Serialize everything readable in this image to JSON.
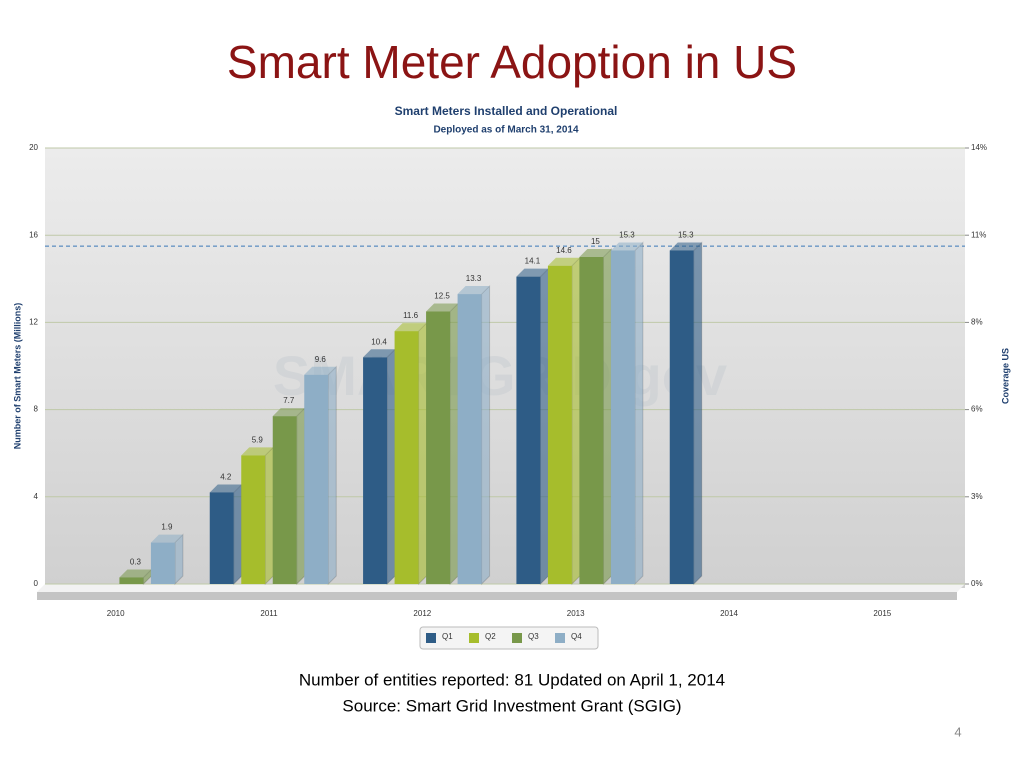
{
  "slide": {
    "title": "Smart Meter Adoption in US",
    "footer": [
      "Number of entities reported: 81 Updated on April 1, 2014",
      "Source:  Smart Grid Investment Grant (SGIG)"
    ],
    "page_number": "4"
  },
  "chart_data": {
    "type": "bar3d",
    "title": "Smart Meters Installed and Operational",
    "subtitle": "Deployed as of March 31, 2014",
    "y_label": "Number of Smart Meters (Millions)",
    "y2_label": "Coverage US",
    "watermark": "SMARTGRID.gov",
    "categories": [
      "2010",
      "2011",
      "2012",
      "2013",
      "2014",
      "2015"
    ],
    "series": [
      {
        "name": "Q1",
        "color": "#2e5c86",
        "values": [
          null,
          4.2,
          10.4,
          14.1,
          15.3,
          null
        ]
      },
      {
        "name": "Q2",
        "color": "#a6bd2c",
        "values": [
          null,
          5.9,
          11.6,
          14.6,
          null,
          null
        ]
      },
      {
        "name": "Q3",
        "color": "#78984a",
        "values": [
          0.3,
          7.7,
          12.5,
          15,
          null,
          null
        ]
      },
      {
        "name": "Q4",
        "color": "#8eaec6",
        "values": [
          1.9,
          9.6,
          13.3,
          15.3,
          null,
          null
        ]
      }
    ],
    "ylim": [
      0,
      20
    ],
    "yticks": [
      0,
      4,
      8,
      12,
      16,
      20
    ],
    "y2lim": [
      0,
      14
    ],
    "y2ticks": [
      {
        "value": 0,
        "label": "0%"
      },
      {
        "value": 2.8,
        "label": "3%"
      },
      {
        "value": 5.6,
        "label": "6%"
      },
      {
        "value": 8.4,
        "label": "8%"
      },
      {
        "value": 11.2,
        "label": "11%"
      },
      {
        "value": 14,
        "label": "14%"
      }
    ],
    "reference_line": 15.5,
    "grid": true
  }
}
